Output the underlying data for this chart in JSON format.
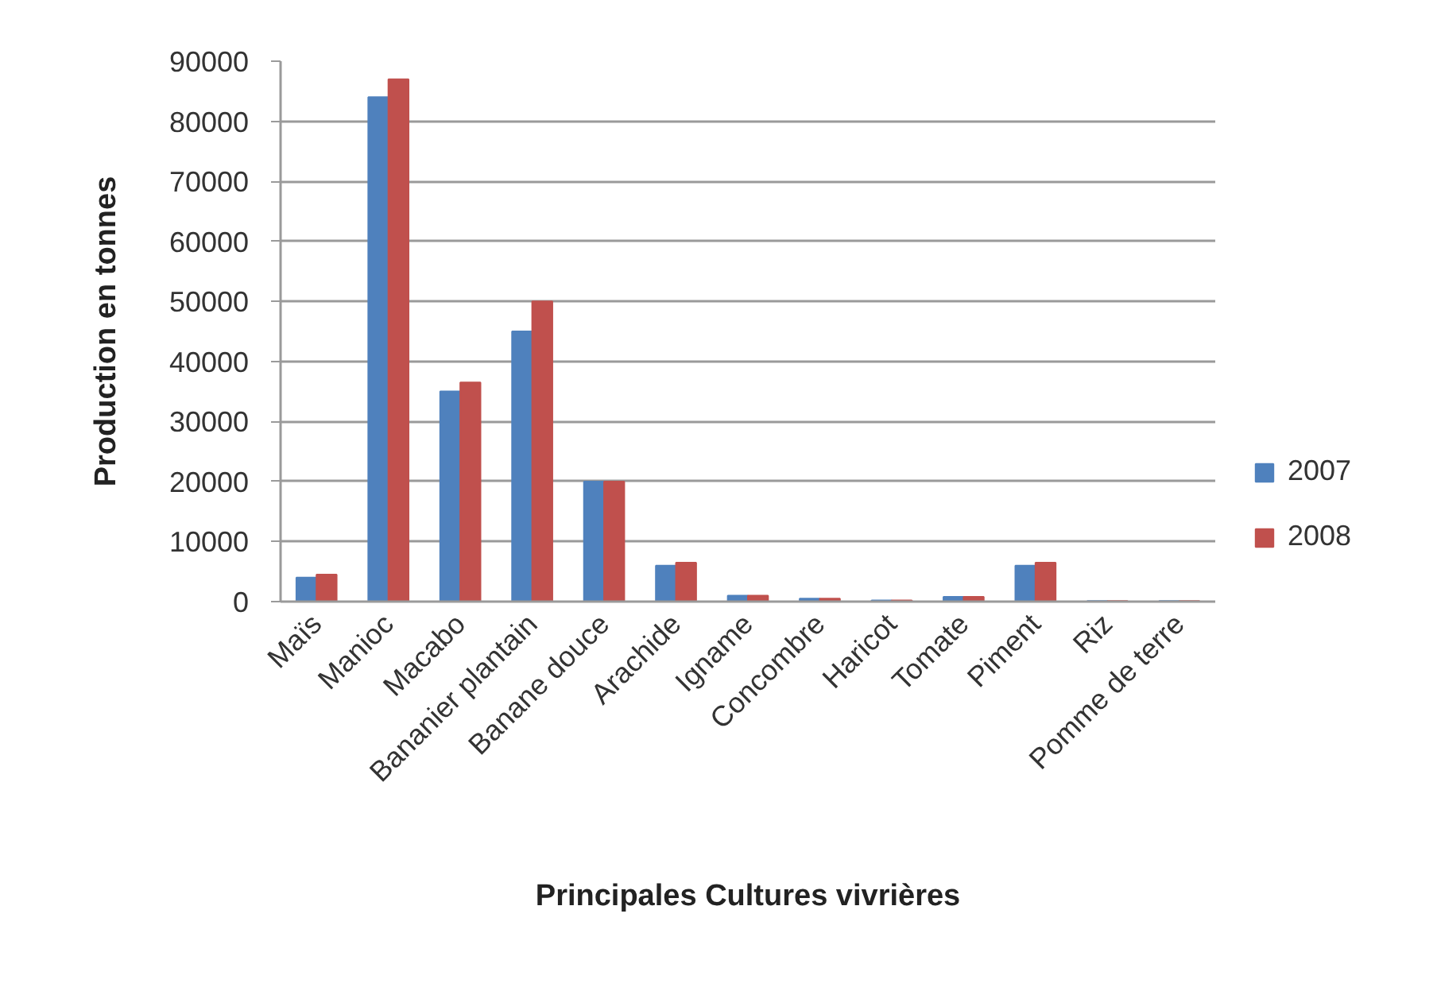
{
  "chart_data": {
    "type": "bar",
    "xlabel": "Principales Cultures vivrières",
    "ylabel": "Production en tonnes",
    "categories": [
      "Maïs",
      "Manioc",
      "Macabo",
      "Bananier plantain",
      "Banane douce",
      "Arachide",
      "Igname",
      "Concombre",
      "Haricot",
      "Tomate",
      "Piment",
      "Riz",
      "Pomme de terre"
    ],
    "series": [
      {
        "name": "2007",
        "color": "#4f81bd",
        "values": [
          4000,
          84000,
          35000,
          45000,
          20000,
          6000,
          1000,
          500,
          200,
          800,
          6000,
          100,
          100
        ]
      },
      {
        "name": "2008",
        "color": "#c0504d",
        "values": [
          4500,
          87000,
          36500,
          50000,
          20000,
          6500,
          1000,
          500,
          200,
          800,
          6500,
          100,
          100
        ]
      }
    ],
    "ylim": [
      0,
      90000
    ],
    "yticks": [
      0,
      10000,
      20000,
      30000,
      40000,
      50000,
      60000,
      70000,
      80000,
      90000
    ],
    "grid": "y",
    "legend": "right"
  }
}
